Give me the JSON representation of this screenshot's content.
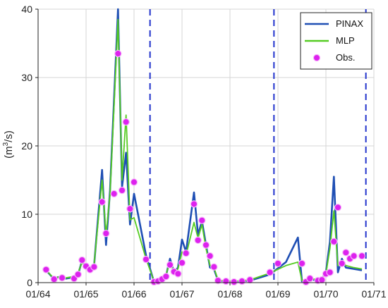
{
  "chart_data": {
    "type": "line",
    "ylabel": "(m³/s)",
    "ylabel_parts": {
      "open": "(m",
      "sup": "3",
      "close": "/s)"
    },
    "ylim": [
      0,
      40
    ],
    "y_ticks": [
      "0",
      "10",
      "20",
      "30",
      "40"
    ],
    "x_axis": {
      "start": "01/64",
      "end": "01/71"
    },
    "x_ticks": [
      "01/64",
      "01/65",
      "01/66",
      "01/67",
      "01/68",
      "01/69",
      "01/70",
      "01/71"
    ],
    "grid": true,
    "legend_position": "top-right",
    "vertical_dashed_lines": [
      "05/66",
      "12/68",
      "11/70"
    ],
    "series": [
      {
        "name": "PINAX",
        "color": "#1f4fb4",
        "points": [
          [
            "03/64",
            1.8
          ],
          [
            "05/64",
            0.5
          ],
          [
            "06/64",
            0.8
          ],
          [
            "08/64",
            0.6
          ],
          [
            "10/64",
            0.8
          ],
          [
            "11/64",
            1.2
          ],
          [
            "12/64",
            3.2
          ],
          [
            "01/65",
            2.2
          ],
          [
            "02/65",
            1.6
          ],
          [
            "03/65",
            2.4
          ],
          [
            "05/65",
            16.5
          ],
          [
            "06/65",
            5.5
          ],
          [
            "07/65",
            13.5
          ],
          [
            "09/65",
            40.0
          ],
          [
            "10/65",
            14.0
          ],
          [
            "11/65",
            19.0
          ],
          [
            "12/65",
            8.5
          ],
          [
            "01/66",
            13.0
          ],
          [
            "04/66",
            4.0
          ],
          [
            "06/66",
            0.1
          ],
          [
            "08/66",
            0.3
          ],
          [
            "09/66",
            1.0
          ],
          [
            "10/66",
            3.5
          ],
          [
            "11/66",
            1.5
          ],
          [
            "12/66",
            2.2
          ],
          [
            "01/67",
            6.3
          ],
          [
            "02/67",
            4.5
          ],
          [
            "04/67",
            13.2
          ],
          [
            "05/67",
            7.0
          ],
          [
            "06/67",
            9.0
          ],
          [
            "07/67",
            5.5
          ],
          [
            "08/67",
            2.2
          ],
          [
            "09/67",
            2.0
          ],
          [
            "10/67",
            0.3
          ],
          [
            "12/67",
            0.2
          ],
          [
            "02/68",
            0.1
          ],
          [
            "04/68",
            0.2
          ],
          [
            "06/68",
            0.3
          ],
          [
            "11/68",
            1.2
          ],
          [
            "03/69",
            3.0
          ],
          [
            "06/69",
            6.6
          ],
          [
            "07/69",
            0.2
          ],
          [
            "09/69",
            0.6
          ],
          [
            "10/69",
            0.4
          ],
          [
            "12/69",
            0.5
          ],
          [
            "01/70",
            1.5
          ],
          [
            "02/70",
            6.0
          ],
          [
            "03/70",
            15.5
          ],
          [
            "04/70",
            1.5
          ],
          [
            "05/70",
            3.5
          ],
          [
            "06/70",
            2.2
          ],
          [
            "08/70",
            2.0
          ],
          [
            "10/70",
            1.8
          ]
        ]
      },
      {
        "name": "MLP",
        "color": "#55cc22",
        "points": [
          [
            "03/64",
            1.8
          ],
          [
            "05/64",
            0.6
          ],
          [
            "06/64",
            0.8
          ],
          [
            "08/64",
            0.7
          ],
          [
            "10/64",
            0.9
          ],
          [
            "11/64",
            1.4
          ],
          [
            "12/64",
            3.0
          ],
          [
            "01/65",
            2.0
          ],
          [
            "02/65",
            1.8
          ],
          [
            "03/65",
            2.6
          ],
          [
            "05/65",
            15.0
          ],
          [
            "06/65",
            7.0
          ],
          [
            "07/65",
            13.0
          ],
          [
            "09/65",
            38.5
          ],
          [
            "10/65",
            15.0
          ],
          [
            "11/65",
            24.5
          ],
          [
            "12/65",
            9.2
          ],
          [
            "01/66",
            9.5
          ],
          [
            "04/66",
            3.5
          ],
          [
            "06/66",
            0.2
          ],
          [
            "08/66",
            0.4
          ],
          [
            "09/66",
            1.2
          ],
          [
            "10/66",
            3.0
          ],
          [
            "11/66",
            1.6
          ],
          [
            "12/66",
            2.0
          ],
          [
            "01/67",
            4.5
          ],
          [
            "02/67",
            4.0
          ],
          [
            "04/67",
            8.8
          ],
          [
            "05/67",
            6.5
          ],
          [
            "06/67",
            8.5
          ],
          [
            "07/67",
            5.0
          ],
          [
            "08/67",
            2.5
          ],
          [
            "09/67",
            2.2
          ],
          [
            "10/67",
            0.4
          ],
          [
            "12/67",
            0.2
          ],
          [
            "02/68",
            0.2
          ],
          [
            "04/68",
            0.3
          ],
          [
            "06/68",
            0.4
          ],
          [
            "11/68",
            1.4
          ],
          [
            "03/69",
            2.5
          ],
          [
            "06/69",
            3.0
          ],
          [
            "07/69",
            0.3
          ],
          [
            "09/69",
            0.7
          ],
          [
            "10/69",
            0.5
          ],
          [
            "12/69",
            0.6
          ],
          [
            "01/70",
            1.3
          ],
          [
            "02/70",
            5.0
          ],
          [
            "03/70",
            10.5
          ],
          [
            "04/70",
            2.5
          ],
          [
            "05/70",
            3.2
          ],
          [
            "06/70",
            2.5
          ],
          [
            "08/70",
            2.2
          ],
          [
            "10/70",
            2.0
          ]
        ]
      }
    ],
    "observations": {
      "name": "Obs.",
      "color": "#dd22ee",
      "points": [
        [
          "03/64",
          1.9
        ],
        [
          "05/64",
          0.5
        ],
        [
          "07/64",
          0.7
        ],
        [
          "10/64",
          0.6
        ],
        [
          "11/64",
          1.2
        ],
        [
          "12/64",
          3.3
        ],
        [
          "01/65",
          2.4
        ],
        [
          "02/65",
          1.9
        ],
        [
          "03/65",
          2.3
        ],
        [
          "05/65",
          11.8
        ],
        [
          "06/65",
          7.2
        ],
        [
          "08/65",
          13.0
        ],
        [
          "09/65",
          33.5
        ],
        [
          "10/65",
          13.5
        ],
        [
          "11/65",
          23.5
        ],
        [
          "12/65",
          10.8
        ],
        [
          "01/66",
          14.7
        ],
        [
          "04/66",
          3.4
        ],
        [
          "06/66",
          0.1
        ],
        [
          "07/66",
          0.2
        ],
        [
          "08/66",
          0.5
        ],
        [
          "09/66",
          0.9
        ],
        [
          "10/66",
          2.6
        ],
        [
          "11/66",
          1.6
        ],
        [
          "12/66",
          1.3
        ],
        [
          "01/67",
          2.9
        ],
        [
          "02/67",
          4.3
        ],
        [
          "04/67",
          11.5
        ],
        [
          "05/67",
          6.2
        ],
        [
          "06/67",
          9.1
        ],
        [
          "07/67",
          5.5
        ],
        [
          "08/67",
          3.9
        ],
        [
          "09/67",
          2.3
        ],
        [
          "10/67",
          0.3
        ],
        [
          "12/67",
          0.2
        ],
        [
          "02/68",
          0.1
        ],
        [
          "04/68",
          0.2
        ],
        [
          "06/68",
          0.4
        ],
        [
          "11/68",
          1.5
        ],
        [
          "01/69",
          2.8
        ],
        [
          "07/69",
          2.8
        ],
        [
          "08/69",
          0.1
        ],
        [
          "09/69",
          0.6
        ],
        [
          "11/69",
          0.3
        ],
        [
          "12/69",
          0.4
        ],
        [
          "01/70",
          1.3
        ],
        [
          "02/70",
          1.5
        ],
        [
          "03/70",
          6.0
        ],
        [
          "04/70",
          11.0
        ],
        [
          "05/70",
          2.8
        ],
        [
          "06/70",
          4.4
        ],
        [
          "07/70",
          3.5
        ],
        [
          "08/70",
          3.9
        ],
        [
          "10/70",
          3.9
        ]
      ]
    },
    "legend": [
      {
        "label": "PINAX",
        "kind": "line",
        "color": "#1f4fb4"
      },
      {
        "label": "MLP",
        "kind": "line",
        "color": "#55cc22"
      },
      {
        "label": "Obs.",
        "kind": "marker",
        "color": "#dd22ee"
      }
    ]
  }
}
